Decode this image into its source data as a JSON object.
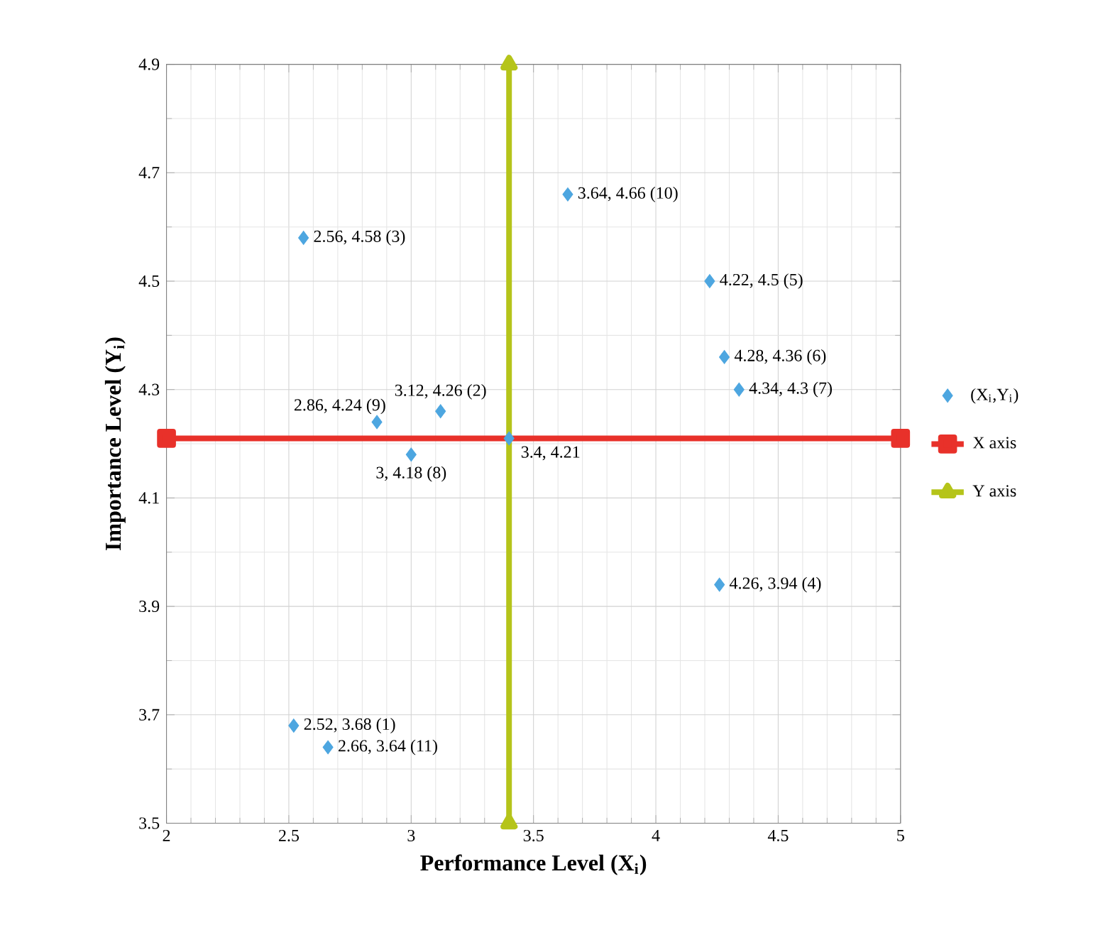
{
  "chart_data": {
    "type": "scatter",
    "xlabel": "Performance Level (X$_{i}$)",
    "ylabel": "Importance Level (Y$_{i}$)",
    "xlim": [
      2,
      5
    ],
    "ylim": [
      3.5,
      4.9
    ],
    "xticks": [
      2,
      2.5,
      3,
      3.5,
      4,
      4.5,
      5
    ],
    "yticks": [
      3.5,
      3.7,
      3.9,
      4.1,
      4.3,
      4.5,
      4.7,
      4.9
    ],
    "grid": true,
    "legend": "right",
    "series": [
      {
        "name": "(X$_{i}$,Y$_{i}$)",
        "marker": "diamond",
        "color": "#4da6e0",
        "x": [
          2.52,
          3.12,
          2.56,
          4.26,
          4.22,
          4.28,
          4.34,
          3,
          2.86,
          3.64,
          2.66,
          3.4
        ],
        "values": [
          3.68,
          4.26,
          4.58,
          3.94,
          4.5,
          4.36,
          4.3,
          4.18,
          4.24,
          4.66,
          3.64,
          4.21
        ],
        "value_labels": [
          "2.52, 3.68 (1)",
          "3.12, 4.26 (2)",
          "2.56, 4.58 (3)",
          "4.26, 3.94 (4)",
          "4.22, 4.5 (5)",
          "4.28, 4.36 (6)",
          "4.34, 4.3 (7)",
          "3, 4.18 (8)",
          "2.86, 4.24 (9)",
          "3.64, 4.66 (10)",
          "2.66, 3.64 (11)",
          "3.4, 4.21"
        ]
      },
      {
        "name": "X axis",
        "type": "line",
        "marker": "square",
        "color": "#e8312a",
        "x": [
          2,
          5
        ],
        "values": [
          4.21,
          4.21
        ]
      },
      {
        "name": "Y axis",
        "type": "line",
        "marker": "triangle",
        "color": "#b5c41a",
        "x": [
          3.4,
          3.4
        ],
        "values": [
          3.5,
          4.9
        ]
      }
    ]
  }
}
